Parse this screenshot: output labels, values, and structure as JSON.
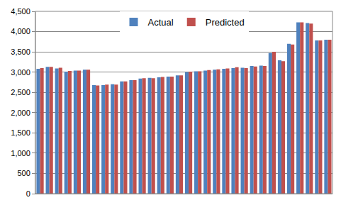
{
  "chart_data": {
    "type": "bar",
    "categories": [
      null,
      null,
      null,
      null,
      null,
      null,
      null,
      null,
      null,
      null,
      null,
      null,
      null,
      null,
      null,
      null,
      null,
      null,
      null,
      null,
      null,
      null,
      null,
      null,
      null,
      null,
      null,
      null,
      null,
      null,
      null,
      null
    ],
    "series": [
      {
        "name": "Actual",
        "color": "#4f81bd",
        "values": [
          3080,
          3130,
          3090,
          3010,
          3040,
          3060,
          2680,
          2680,
          2700,
          2770,
          2800,
          2840,
          2860,
          2870,
          2890,
          2920,
          3000,
          3020,
          3040,
          3060,
          3080,
          3100,
          3110,
          3150,
          3160,
          3470,
          3290,
          3700,
          4230,
          4210,
          3780,
          3800
        ]
      },
      {
        "name": "Predicted",
        "color": "#c0504d",
        "values": [
          3100,
          3130,
          3110,
          3030,
          3040,
          3060,
          2670,
          2690,
          2690,
          2770,
          2800,
          2850,
          2850,
          2880,
          2890,
          2920,
          3010,
          3020,
          3050,
          3070,
          3090,
          3120,
          3100,
          3140,
          3150,
          3500,
          3270,
          3680,
          4230,
          4200,
          3780,
          3800
        ]
      }
    ],
    "ylim": [
      0,
      4500
    ],
    "yticks": [
      0,
      500,
      {
        "value": 1000,
        "label": "1,000"
      },
      {
        "value": 1500,
        "label": "1,500"
      },
      {
        "value": 2000,
        "label": "2,000"
      },
      {
        "value": 2500,
        "label": "2,500"
      },
      {
        "value": 3000,
        "label": "3,000"
      },
      {
        "value": 3500,
        "label": "3,500"
      },
      {
        "value": 4000,
        "label": "4,000"
      },
      {
        "value": 4500,
        "label": "4,500"
      }
    ],
    "grid": true,
    "legend": "top",
    "tick_labels": "y"
  }
}
